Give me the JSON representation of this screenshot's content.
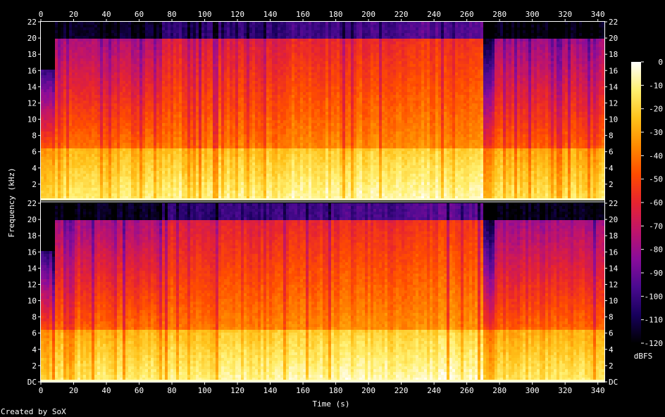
{
  "footer": {
    "credit": "Created by SoX"
  },
  "chart_data": {
    "type": "heatmap",
    "title": "",
    "xlabel": "Time (s)",
    "ylabel": "Frequency (kHz)",
    "colorbar_label": "dBFS",
    "xlim": [
      0,
      344
    ],
    "ylim_khz": [
      0,
      22
    ],
    "x_ticks": [
      "0",
      "20",
      "40",
      "60",
      "80",
      "100",
      "120",
      "140",
      "160",
      "180",
      "200",
      "220",
      "240",
      "260",
      "280",
      "300",
      "320",
      "340"
    ],
    "y_ticks_top_channel": [
      "2",
      "4",
      "6",
      "8",
      "10",
      "12",
      "14",
      "16",
      "18",
      "20",
      "22"
    ],
    "y_ticks_bottom_channel": [
      "DC",
      "2",
      "4",
      "6",
      "8",
      "10",
      "12",
      "14",
      "16",
      "18",
      "20",
      "22"
    ],
    "colorbar_range_dbfs": [
      -120,
      0
    ],
    "colorbar_ticks": [
      "0",
      "-10",
      "-20",
      "-30",
      "-40",
      "-50",
      "-60",
      "-70",
      "-80",
      "-90",
      "-100",
      "-110",
      "-120"
    ],
    "colormap": [
      "#000000",
      "#17005c",
      "#4a0a90",
      "#8a0c9a",
      "#c0146a",
      "#e7242f",
      "#ff4c00",
      "#ff8a00",
      "#ffc21a",
      "#fff070",
      "#ffffff"
    ],
    "channels": 2,
    "segments": [
      {
        "t_start": 0,
        "t_end": 8,
        "hf_level_dbfs": -100,
        "cutoff_khz": 16,
        "lf_level_dbfs": -35
      },
      {
        "t_start": 8,
        "t_end": 74,
        "hf_level_dbfs": -78,
        "cutoff_khz": 20,
        "lf_level_dbfs": -28
      },
      {
        "t_start": 74,
        "t_end": 148,
        "hf_level_dbfs": -64,
        "cutoff_khz": 20,
        "lf_level_dbfs": -25
      },
      {
        "t_start": 148,
        "t_end": 222,
        "hf_level_dbfs": -60,
        "cutoff_khz": 20,
        "lf_level_dbfs": -22
      },
      {
        "t_start": 222,
        "t_end": 270,
        "hf_level_dbfs": -55,
        "cutoff_khz": 20,
        "lf_level_dbfs": -20
      },
      {
        "t_start": 270,
        "t_end": 277,
        "hf_level_dbfs": -112,
        "cutoff_khz": 20,
        "lf_level_dbfs": -40
      },
      {
        "t_start": 277,
        "t_end": 344,
        "hf_level_dbfs": -80,
        "cutoff_khz": 20,
        "lf_level_dbfs": -30
      }
    ]
  }
}
